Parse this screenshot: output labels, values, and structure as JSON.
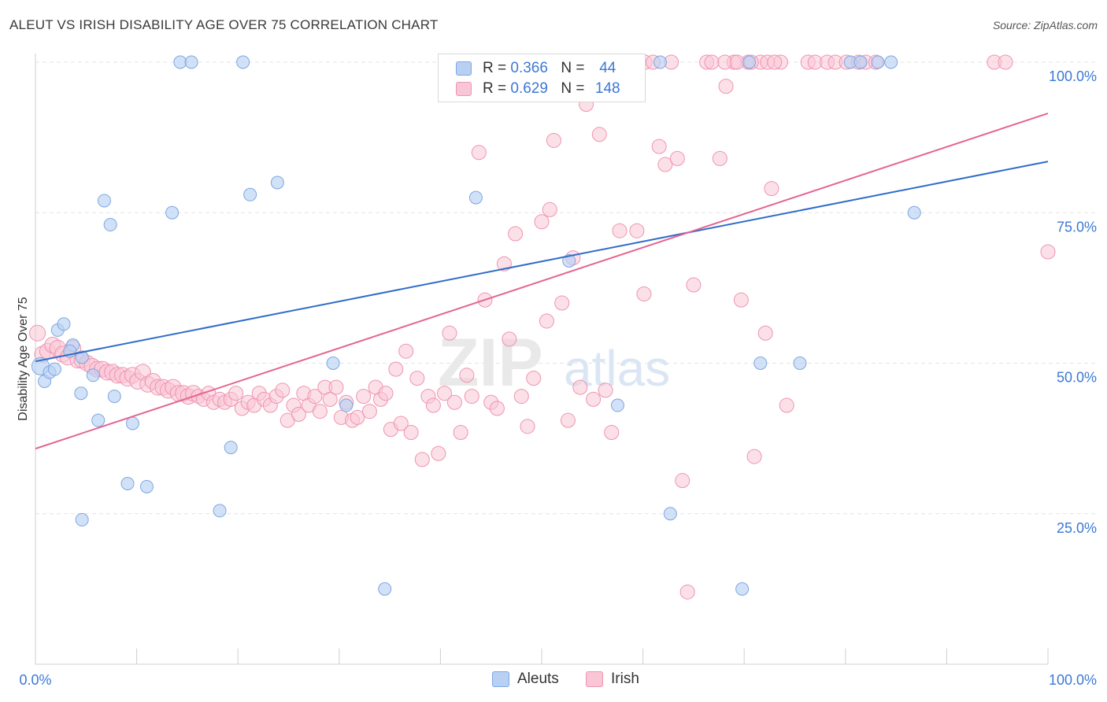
{
  "title": "ALEUT VS IRISH DISABILITY AGE OVER 75 CORRELATION CHART",
  "source": "Source: ZipAtlas.com",
  "watermark": {
    "zip": "ZIP",
    "atlas": "atlas"
  },
  "legend": {
    "rows": [
      {
        "r_label": "R =",
        "r_value": "0.366",
        "n_label": "N =",
        "n_value": "44"
      },
      {
        "r_label": "R =",
        "r_value": "0.629",
        "n_label": "N =",
        "n_value": "148"
      }
    ]
  },
  "bottom_legend": {
    "aleut": "Aleuts",
    "irish": "Irish"
  },
  "colors": {
    "aleut_fill": "#b8d1f2",
    "aleut_stroke": "#7fa7e0",
    "aleut_line": "#2f6cc9",
    "irish_fill": "#f9c6d6",
    "irish_stroke": "#ee94b3",
    "irish_line": "#e46592",
    "tick_label": "#3b78d6",
    "grid": "#e3e3e3"
  },
  "chart_data": {
    "type": "scatter",
    "title": "ALEUT VS IRISH DISABILITY AGE OVER 75 CORRELATION CHART",
    "xlabel": "",
    "ylabel": "Disability Age Over 75",
    "xlim": [
      0,
      100
    ],
    "ylim": [
      0,
      100
    ],
    "x_tick_labels": [
      "0.0%",
      "100.0%"
    ],
    "y_ticks": [
      25,
      50,
      75,
      100
    ],
    "y_tick_labels": [
      "25.0%",
      "50.0%",
      "75.0%",
      "100.0%"
    ],
    "grid": "horizontal dashed",
    "legend_position": "top-center",
    "series": [
      {
        "name": "Aleuts",
        "r": 0.366,
        "n": 44,
        "trend": {
          "x": [
            0,
            100
          ],
          "y": [
            50.3,
            83.5
          ]
        },
        "points": [
          [
            0.5,
            49.5,
            11
          ],
          [
            0.9,
            47,
            8
          ],
          [
            1.4,
            48.5,
            8
          ],
          [
            1.9,
            49,
            8
          ],
          [
            2.2,
            55.5,
            8
          ],
          [
            2.8,
            56.5,
            8
          ],
          [
            3.7,
            53,
            8
          ],
          [
            3.4,
            52,
            8
          ],
          [
            4.5,
            45,
            8
          ],
          [
            4.6,
            51,
            8
          ],
          [
            5.7,
            48,
            8
          ],
          [
            6.2,
            40.5,
            8
          ],
          [
            6.8,
            77,
            8
          ],
          [
            7.4,
            73,
            8
          ],
          [
            7.8,
            44.5,
            8
          ],
          [
            9.1,
            30,
            8
          ],
          [
            9.6,
            40,
            8
          ],
          [
            11,
            29.5,
            8
          ],
          [
            13.5,
            75,
            8
          ],
          [
            14.3,
            100,
            8
          ],
          [
            15.4,
            100,
            8
          ],
          [
            18.2,
            25.5,
            8
          ],
          [
            19.3,
            36,
            8
          ],
          [
            20.5,
            100,
            8
          ],
          [
            21.2,
            78,
            8
          ],
          [
            23.9,
            80,
            8
          ],
          [
            4.6,
            24,
            8
          ],
          [
            29.4,
            50,
            8
          ],
          [
            30.7,
            43,
            8
          ],
          [
            34.5,
            12.5,
            8
          ],
          [
            43.5,
            77.5,
            8
          ],
          [
            52.7,
            67,
            8
          ],
          [
            57.5,
            43,
            8
          ],
          [
            61.7,
            100,
            8
          ],
          [
            62.7,
            25,
            8
          ],
          [
            69.8,
            12.5,
            8
          ],
          [
            70.5,
            100,
            8
          ],
          [
            71.6,
            50,
            8
          ],
          [
            75.5,
            50,
            8
          ],
          [
            80.5,
            100,
            8
          ],
          [
            81.5,
            100,
            8
          ],
          [
            83.2,
            100,
            8
          ],
          [
            84.5,
            100,
            8
          ],
          [
            86.8,
            75,
            8
          ]
        ]
      },
      {
        "name": "Irish",
        "r": 0.629,
        "n": 148,
        "trend": {
          "x": [
            0,
            100
          ],
          "y": [
            35.8,
            91.5
          ]
        },
        "points": [
          [
            0.2,
            55,
            10
          ],
          [
            0.7,
            51.5,
            10
          ],
          [
            1.2,
            52,
            10
          ],
          [
            1.7,
            53,
            10
          ],
          [
            2.2,
            52.5,
            10
          ],
          [
            2.7,
            51.5,
            10
          ],
          [
            3.2,
            51,
            10
          ],
          [
            3.7,
            52.5,
            10
          ],
          [
            4.2,
            50.5,
            10
          ],
          [
            4.6,
            50.5,
            10
          ],
          [
            5.1,
            50,
            10
          ],
          [
            5.6,
            49.5,
            10
          ],
          [
            6.1,
            49,
            10
          ],
          [
            6.6,
            49,
            10
          ],
          [
            7.1,
            48.5,
            10
          ],
          [
            7.6,
            48.5,
            10
          ],
          [
            8.1,
            48,
            10
          ],
          [
            8.6,
            48,
            10
          ],
          [
            9.1,
            47.5,
            10
          ],
          [
            9.6,
            48,
            10
          ],
          [
            10.1,
            47,
            10
          ],
          [
            10.6,
            48.5,
            10
          ],
          [
            11.1,
            46.5,
            10
          ],
          [
            11.6,
            47,
            10
          ],
          [
            12.1,
            46,
            10
          ],
          [
            12.6,
            46,
            10
          ],
          [
            13.1,
            45.5,
            10
          ],
          [
            13.6,
            46,
            10
          ],
          [
            14.1,
            45,
            10
          ],
          [
            14.6,
            45,
            10
          ],
          [
            15.1,
            44.5,
            10
          ],
          [
            15.6,
            45,
            10
          ],
          [
            16.1,
            44.5,
            9
          ],
          [
            16.6,
            44,
            9
          ],
          [
            17.1,
            45,
            9
          ],
          [
            17.6,
            43.5,
            9
          ],
          [
            18.2,
            44,
            9
          ],
          [
            18.7,
            43.5,
            9
          ],
          [
            19.3,
            44,
            9
          ],
          [
            19.8,
            45,
            9
          ],
          [
            20.4,
            42.5,
            9
          ],
          [
            21.0,
            43.5,
            9
          ],
          [
            21.6,
            43,
            9
          ],
          [
            22.1,
            45,
            9
          ],
          [
            22.6,
            44,
            9
          ],
          [
            23.2,
            43,
            9
          ],
          [
            23.8,
            44.5,
            9
          ],
          [
            24.4,
            45.5,
            9
          ],
          [
            24.9,
            40.5,
            9
          ],
          [
            25.5,
            43,
            9
          ],
          [
            26.0,
            41.5,
            9
          ],
          [
            26.5,
            45,
            9
          ],
          [
            27.0,
            43,
            9
          ],
          [
            27.6,
            44.5,
            9
          ],
          [
            28.1,
            42,
            9
          ],
          [
            28.6,
            46,
            9
          ],
          [
            29.1,
            44,
            9
          ],
          [
            29.7,
            46,
            9
          ],
          [
            30.2,
            41,
            9
          ],
          [
            30.7,
            43.5,
            9
          ],
          [
            31.3,
            40.5,
            9
          ],
          [
            31.8,
            41,
            9
          ],
          [
            32.4,
            44.5,
            9
          ],
          [
            33.0,
            42,
            9
          ],
          [
            33.6,
            46,
            9
          ],
          [
            34.1,
            44,
            9
          ],
          [
            34.6,
            45,
            9
          ],
          [
            35.1,
            39,
            9
          ],
          [
            35.6,
            49,
            9
          ],
          [
            36.1,
            40,
            9
          ],
          [
            36.6,
            52,
            9
          ],
          [
            37.1,
            38.5,
            9
          ],
          [
            37.7,
            47.5,
            9
          ],
          [
            38.2,
            34,
            9
          ],
          [
            38.8,
            44.5,
            9
          ],
          [
            39.3,
            43,
            9
          ],
          [
            39.8,
            35,
            9
          ],
          [
            40.4,
            45,
            9
          ],
          [
            40.9,
            55,
            9
          ],
          [
            41.4,
            43.5,
            9
          ],
          [
            42.0,
            38.5,
            9
          ],
          [
            42.6,
            48,
            9
          ],
          [
            43.1,
            44.5,
            9
          ],
          [
            43.8,
            85,
            9
          ],
          [
            44.4,
            60.5,
            9
          ],
          [
            45.0,
            43.5,
            9
          ],
          [
            45.6,
            42.5,
            9
          ],
          [
            46.3,
            66.5,
            9
          ],
          [
            46.8,
            54,
            9
          ],
          [
            47.4,
            71.5,
            9
          ],
          [
            48.0,
            44.5,
            9
          ],
          [
            48.6,
            39.5,
            9
          ],
          [
            49.2,
            47.5,
            9
          ],
          [
            50.0,
            73.5,
            9
          ],
          [
            50.5,
            57,
            9
          ],
          [
            50.8,
            75.5,
            9
          ],
          [
            51.2,
            87,
            9
          ],
          [
            52.0,
            60,
            9
          ],
          [
            52.6,
            40.5,
            9
          ],
          [
            53.1,
            67.5,
            9
          ],
          [
            53.8,
            46,
            9
          ],
          [
            54.4,
            93,
            9
          ],
          [
            55.1,
            44,
            9
          ],
          [
            55.7,
            88,
            9
          ],
          [
            56.3,
            45.5,
            9
          ],
          [
            56.9,
            38.5,
            9
          ],
          [
            57.7,
            72,
            9
          ],
          [
            59.4,
            72,
            9
          ],
          [
            60.1,
            61.5,
            9
          ],
          [
            61.6,
            86,
            9
          ],
          [
            62.2,
            83,
            9
          ],
          [
            62.8,
            100,
            9
          ],
          [
            63.4,
            84,
            9
          ],
          [
            63.9,
            30.5,
            9
          ],
          [
            64.4,
            12,
            9
          ],
          [
            65.0,
            63,
            9
          ],
          [
            66.3,
            100,
            9
          ],
          [
            67.6,
            84,
            9
          ],
          [
            68.2,
            96,
            9
          ],
          [
            69.0,
            100,
            9
          ],
          [
            69.7,
            60.5,
            9
          ],
          [
            70.4,
            100,
            9
          ],
          [
            71.0,
            34.5,
            9
          ],
          [
            71.6,
            100,
            9
          ],
          [
            72.1,
            55,
            9
          ],
          [
            72.7,
            79,
            9
          ],
          [
            73.6,
            100,
            9
          ],
          [
            74.2,
            43,
            9
          ],
          [
            76.3,
            100,
            9
          ],
          [
            77.0,
            100,
            9
          ],
          [
            78.2,
            100,
            9
          ],
          [
            79.0,
            100,
            9
          ],
          [
            80.1,
            100,
            9
          ],
          [
            81.3,
            100,
            9
          ],
          [
            82.0,
            100,
            9
          ],
          [
            83.0,
            100,
            9
          ],
          [
            46.5,
            100,
            9
          ],
          [
            52.3,
            100,
            9
          ],
          [
            53.9,
            100,
            9
          ],
          [
            55.0,
            100,
            9
          ],
          [
            58.0,
            100,
            9
          ],
          [
            59.6,
            100,
            9
          ],
          [
            60.2,
            100,
            9
          ],
          [
            61.0,
            100,
            9
          ],
          [
            66.8,
            100,
            9
          ],
          [
            68.1,
            100,
            9
          ],
          [
            69.3,
            100,
            9
          ],
          [
            70.7,
            100,
            9
          ],
          [
            72.3,
            100,
            9
          ],
          [
            73.0,
            100,
            9
          ],
          [
            94.7,
            100,
            9
          ],
          [
            95.8,
            100,
            9
          ],
          [
            100.0,
            68.5,
            9
          ],
          [
            44.0,
            100,
            9
          ]
        ]
      }
    ]
  }
}
